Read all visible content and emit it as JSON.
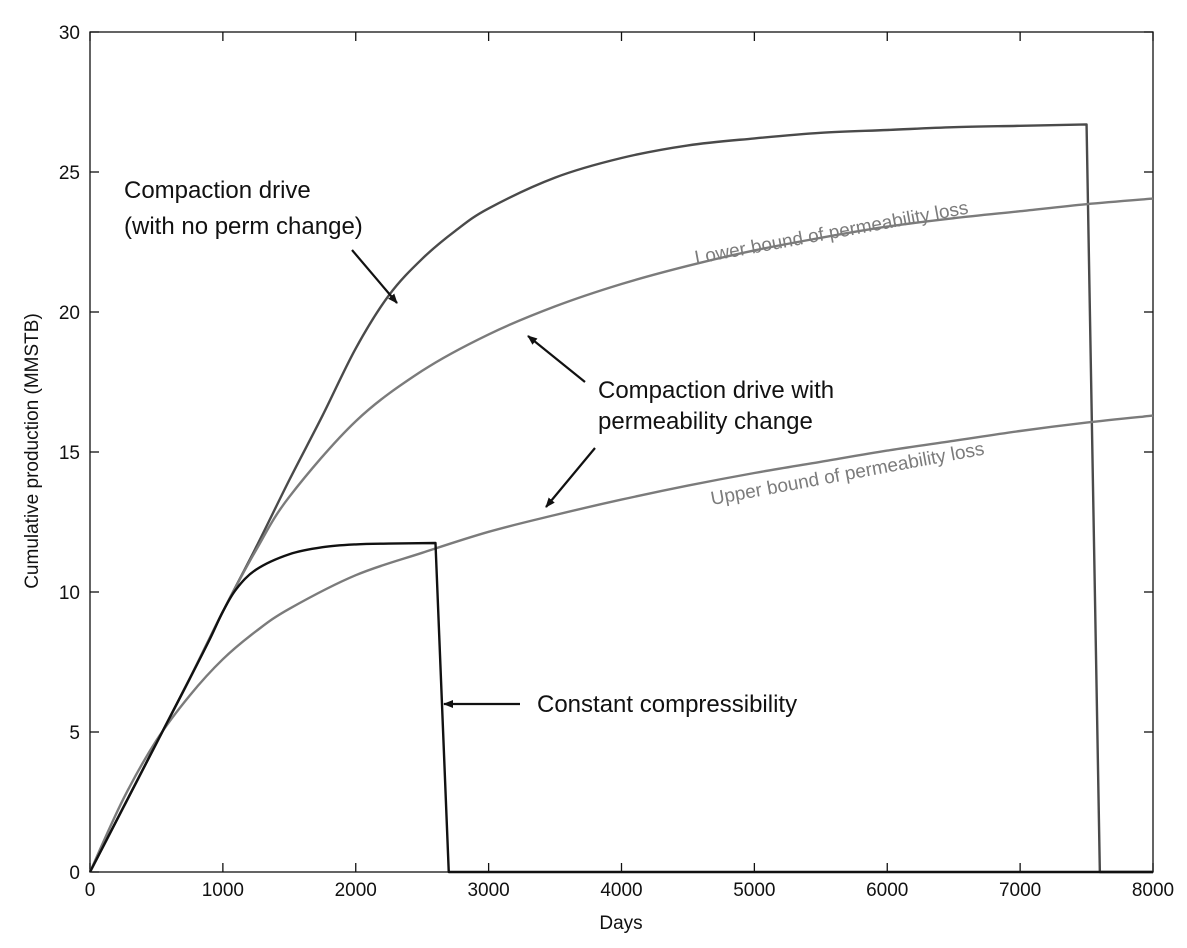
{
  "chart_data": {
    "type": "line",
    "title": "",
    "xlabel": "Days",
    "ylabel": "Cumulative production (MMSTB)",
    "xlim": [
      0,
      8000
    ],
    "ylim": [
      0,
      30
    ],
    "xticks": [
      0,
      1000,
      2000,
      3000,
      4000,
      5000,
      6000,
      7000,
      8000
    ],
    "yticks": [
      0,
      5,
      10,
      15,
      20,
      25,
      30
    ],
    "grid": false,
    "series": [
      {
        "label": "Compaction drive (with no perm change)",
        "color": "#4a4a4a",
        "x": [
          0,
          250,
          500,
          750,
          1000,
          1250,
          1500,
          1750,
          2000,
          2250,
          2500,
          2750,
          3000,
          3500,
          4000,
          4500,
          5000,
          5500,
          6000,
          6500,
          7000,
          7500,
          7600,
          8000
        ],
        "y": [
          0,
          2.3,
          4.6,
          6.9,
          9.3,
          11.6,
          14.0,
          16.3,
          18.7,
          20.6,
          21.9,
          22.9,
          23.7,
          24.8,
          25.5,
          25.95,
          26.2,
          26.4,
          26.5,
          26.6,
          26.65,
          26.7,
          0,
          0
        ]
      },
      {
        "label": "Lower bound of permeability loss",
        "color": "#7b7b7b",
        "x": [
          0,
          250,
          500,
          750,
          1000,
          1250,
          1500,
          2000,
          2500,
          3000,
          3500,
          4000,
          4500,
          5000,
          5500,
          6000,
          6500,
          7000,
          7500,
          8000
        ],
        "y": [
          0,
          2.3,
          4.6,
          6.9,
          9.3,
          11.5,
          13.4,
          16.1,
          17.9,
          19.2,
          20.2,
          21.0,
          21.65,
          22.2,
          22.65,
          23.05,
          23.35,
          23.6,
          23.85,
          24.05
        ]
      },
      {
        "label": "Upper bound of permeability loss",
        "color": "#7b7b7b",
        "x": [
          0,
          250,
          500,
          750,
          1000,
          1250,
          1500,
          2000,
          2500,
          3000,
          3500,
          4000,
          4500,
          5000,
          5500,
          6000,
          6500,
          7000,
          7500,
          8000
        ],
        "y": [
          0,
          2.6,
          4.7,
          6.3,
          7.6,
          8.6,
          9.4,
          10.6,
          11.4,
          12.15,
          12.75,
          13.3,
          13.8,
          14.25,
          14.65,
          15.05,
          15.4,
          15.75,
          16.05,
          16.3
        ]
      },
      {
        "label": "Constant compressibility",
        "color": "#111111",
        "x": [
          0,
          250,
          500,
          750,
          900,
          1000,
          1100,
          1250,
          1500,
          1750,
          2000,
          2250,
          2600,
          2700,
          8000
        ],
        "y": [
          0,
          2.3,
          4.6,
          6.9,
          8.3,
          9.3,
          10.1,
          10.8,
          11.35,
          11.6,
          11.7,
          11.73,
          11.75,
          0,
          0
        ]
      }
    ],
    "annotations": [
      {
        "id": "compaction_no_perm",
        "lines": [
          "Compaction drive",
          "(with no perm change)"
        ]
      },
      {
        "id": "compaction_perm",
        "lines": [
          "Compaction drive with",
          "permeability change"
        ]
      },
      {
        "id": "constant",
        "lines": [
          "Constant compressibility"
        ]
      }
    ],
    "curve_labels": [
      {
        "text": "Lower bound of permeability loss",
        "color": "#7b7b7b"
      },
      {
        "text": "Upper bound of permeability loss",
        "color": "#7b7b7b"
      }
    ]
  }
}
